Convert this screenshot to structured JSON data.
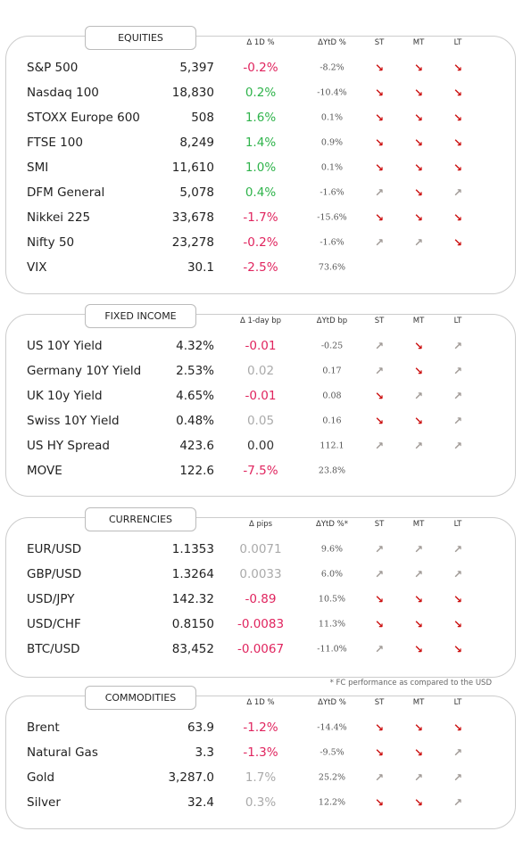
{
  "sections": [
    {
      "title": "EQUITIES",
      "headers": [
        "Δ 1D %",
        "ΔYtD %",
        "ST",
        "MT",
        "LT"
      ],
      "rows": [
        {
          "name": "S&P 500",
          "value": "5,397",
          "change": "-0.2%",
          "tone": "neg",
          "ytd": "-8.2%",
          "trend": [
            "↘",
            "↘",
            "↘"
          ]
        },
        {
          "name": "Nasdaq 100",
          "value": "18,830",
          "change": "0.2%",
          "tone": "pos",
          "ytd": "-10.4%",
          "trend": [
            "↘",
            "↘",
            "↘"
          ]
        },
        {
          "name": "STOXX Europe 600",
          "value": "508",
          "change": "1.6%",
          "tone": "pos",
          "ytd": "0.1%",
          "trend": [
            "↘",
            "↘",
            "↘"
          ]
        },
        {
          "name": "FTSE 100",
          "value": "8,249",
          "change": "1.4%",
          "tone": "pos",
          "ytd": "0.9%",
          "trend": [
            "↘",
            "↘",
            "↘"
          ]
        },
        {
          "name": "SMI",
          "value": "11,610",
          "change": "1.0%",
          "tone": "pos",
          "ytd": "0.1%",
          "trend": [
            "↘",
            "↘",
            "↘"
          ]
        },
        {
          "name": "DFM General",
          "value": "5,078",
          "change": "0.4%",
          "tone": "pos",
          "ytd": "-1.6%",
          "trend": [
            "↗",
            "↘",
            "↗"
          ]
        },
        {
          "name": "Nikkei 225",
          "value": "33,678",
          "change": "-1.7%",
          "tone": "neg",
          "ytd": "-15.6%",
          "trend": [
            "↘",
            "↘",
            "↘"
          ]
        },
        {
          "name": "Nifty  50",
          "value": "23,278",
          "change": "-0.2%",
          "tone": "neg",
          "ytd": "-1.6%",
          "trend": [
            "↗",
            "↗",
            "↘"
          ]
        },
        {
          "name": "VIX",
          "value": "30.1",
          "change": "-2.5%",
          "tone": "neg",
          "ytd": "73.6%",
          "trend": []
        }
      ]
    },
    {
      "title": "FIXED INCOME",
      "headers": [
        "Δ 1-day bp",
        "ΔYtD bp",
        "ST",
        "MT",
        "LT"
      ],
      "rows": [
        {
          "name": "US 10Y Yield",
          "value": "4.32%",
          "change": "-0.01",
          "tone": "neg",
          "ytd": "-0.25",
          "trend": [
            "↗",
            "↘",
            "↗"
          ]
        },
        {
          "name": "Germany 10Y Yield",
          "value": "2.53%",
          "change": "0.02",
          "tone": "flat",
          "ytd": "0.17",
          "trend": [
            "↗",
            "↘",
            "↗"
          ]
        },
        {
          "name": "UK 10y Yield",
          "value": "4.65%",
          "change": "-0.01",
          "tone": "neg",
          "ytd": "0.08",
          "trend": [
            "↘",
            "↗",
            "↗"
          ]
        },
        {
          "name": "Swiss 10Y Yield",
          "value": "0.48%",
          "change": "0.05",
          "tone": "flat",
          "ytd": "0.16",
          "trend": [
            "↘",
            "↘",
            "↗"
          ]
        },
        {
          "name": "US HY Spread",
          "value": "423.6",
          "change": "0.00",
          "tone": "even",
          "ytd": "112.1",
          "trend": [
            "↗",
            "↗",
            "↗"
          ]
        },
        {
          "name": "MOVE",
          "value": "122.6",
          "change": "-7.5%",
          "tone": "neg",
          "ytd": "23.8%",
          "trend": []
        }
      ]
    },
    {
      "title": "CURRENCIES",
      "headers": [
        "Δ pips",
        "ΔYtD %*",
        "ST",
        "MT",
        "LT"
      ],
      "rows": [
        {
          "name": "EUR/USD",
          "value": "1.1353",
          "change": "0.0071",
          "tone": "flat",
          "ytd": "9.6%",
          "trend": [
            "↗",
            "↗",
            "↗"
          ]
        },
        {
          "name": "GBP/USD",
          "value": "1.3264",
          "change": "0.0033",
          "tone": "flat",
          "ytd": "6.0%",
          "trend": [
            "↗",
            "↗",
            "↗"
          ]
        },
        {
          "name": "USD/JPY",
          "value": "142.32",
          "change": "-0.89",
          "tone": "neg",
          "ytd": "10.5%",
          "trend": [
            "↘",
            "↘",
            "↘"
          ]
        },
        {
          "name": "USD/CHF",
          "value": "0.8150",
          "change": "-0.0083",
          "tone": "neg",
          "ytd": "11.3%",
          "trend": [
            "↘",
            "↘",
            "↘"
          ]
        },
        {
          "name": "BTC/USD",
          "value": "83,452",
          "change": "-0.0067",
          "tone": "neg",
          "ytd": "-11.0%",
          "trend": [
            "↗",
            "↘",
            "↘"
          ]
        }
      ],
      "footnote": "* FC performance as compared to the USD"
    },
    {
      "title": "COMMODITIES",
      "headers": [
        "Δ 1D %",
        "ΔYtD %",
        "ST",
        "MT",
        "LT"
      ],
      "rows": [
        {
          "name": "Brent",
          "value": "63.9",
          "change": "-1.2%",
          "tone": "neg",
          "ytd": "-14.4%",
          "trend": [
            "↘",
            "↘",
            "↘"
          ]
        },
        {
          "name": "Natural Gas",
          "value": "3.3",
          "change": "-1.3%",
          "tone": "neg",
          "ytd": "-9.5%",
          "trend": [
            "↘",
            "↘",
            "↗"
          ]
        },
        {
          "name": "Gold",
          "value": "3,287.0",
          "change": "1.7%",
          "tone": "flat",
          "ytd": "25.2%",
          "trend": [
            "↗",
            "↗",
            "↗"
          ]
        },
        {
          "name": "Silver",
          "value": "32.4",
          "change": "0.3%",
          "tone": "flat",
          "ytd": "12.2%",
          "trend": [
            "↘",
            "↘",
            "↗"
          ]
        }
      ]
    }
  ]
}
